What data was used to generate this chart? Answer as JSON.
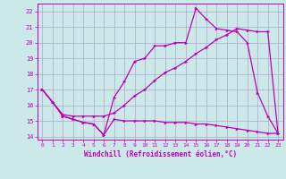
{
  "xlabel": "Windchill (Refroidissement éolien,°C)",
  "bg_color": "#cce8e8",
  "grid_color": "#aaaacc",
  "line_color": "#bb00bb",
  "xlim": [
    -0.5,
    23.5
  ],
  "ylim": [
    13.8,
    22.5
  ],
  "yticks": [
    14,
    15,
    16,
    17,
    18,
    19,
    20,
    21,
    22
  ],
  "xticks": [
    0,
    1,
    2,
    3,
    4,
    5,
    6,
    7,
    8,
    9,
    10,
    11,
    12,
    13,
    14,
    15,
    16,
    17,
    18,
    19,
    20,
    21,
    22,
    23
  ],
  "line1_x": [
    0,
    1,
    2,
    3,
    4,
    5,
    6,
    7,
    8,
    9,
    10,
    11,
    12,
    13,
    14,
    15,
    16,
    17,
    18,
    19,
    20,
    21,
    22,
    23
  ],
  "line1_y": [
    17.0,
    16.2,
    15.3,
    15.1,
    14.9,
    14.8,
    14.1,
    15.1,
    15.0,
    15.0,
    15.0,
    15.0,
    14.9,
    14.9,
    14.9,
    14.8,
    14.8,
    14.7,
    14.6,
    14.5,
    14.4,
    14.3,
    14.2,
    14.2
  ],
  "line2_x": [
    0,
    1,
    2,
    3,
    4,
    5,
    6,
    7,
    8,
    9,
    10,
    11,
    12,
    13,
    14,
    15,
    16,
    17,
    18,
    19,
    20,
    21,
    22,
    23
  ],
  "line2_y": [
    17.0,
    16.2,
    15.3,
    15.1,
    14.9,
    14.8,
    14.1,
    16.5,
    17.5,
    18.8,
    19.0,
    19.8,
    19.8,
    20.0,
    20.0,
    22.2,
    21.5,
    20.9,
    20.8,
    20.7,
    20.0,
    16.8,
    15.3,
    14.2
  ],
  "line3_x": [
    0,
    1,
    2,
    3,
    4,
    5,
    6,
    7,
    8,
    9,
    10,
    11,
    12,
    13,
    14,
    15,
    16,
    17,
    18,
    19,
    20,
    21,
    22,
    23
  ],
  "line3_y": [
    17.0,
    16.2,
    15.4,
    15.3,
    15.3,
    15.3,
    15.3,
    15.5,
    16.0,
    16.6,
    17.0,
    17.6,
    18.1,
    18.4,
    18.8,
    19.3,
    19.7,
    20.2,
    20.5,
    20.9,
    20.8,
    20.7,
    20.7,
    14.2
  ]
}
